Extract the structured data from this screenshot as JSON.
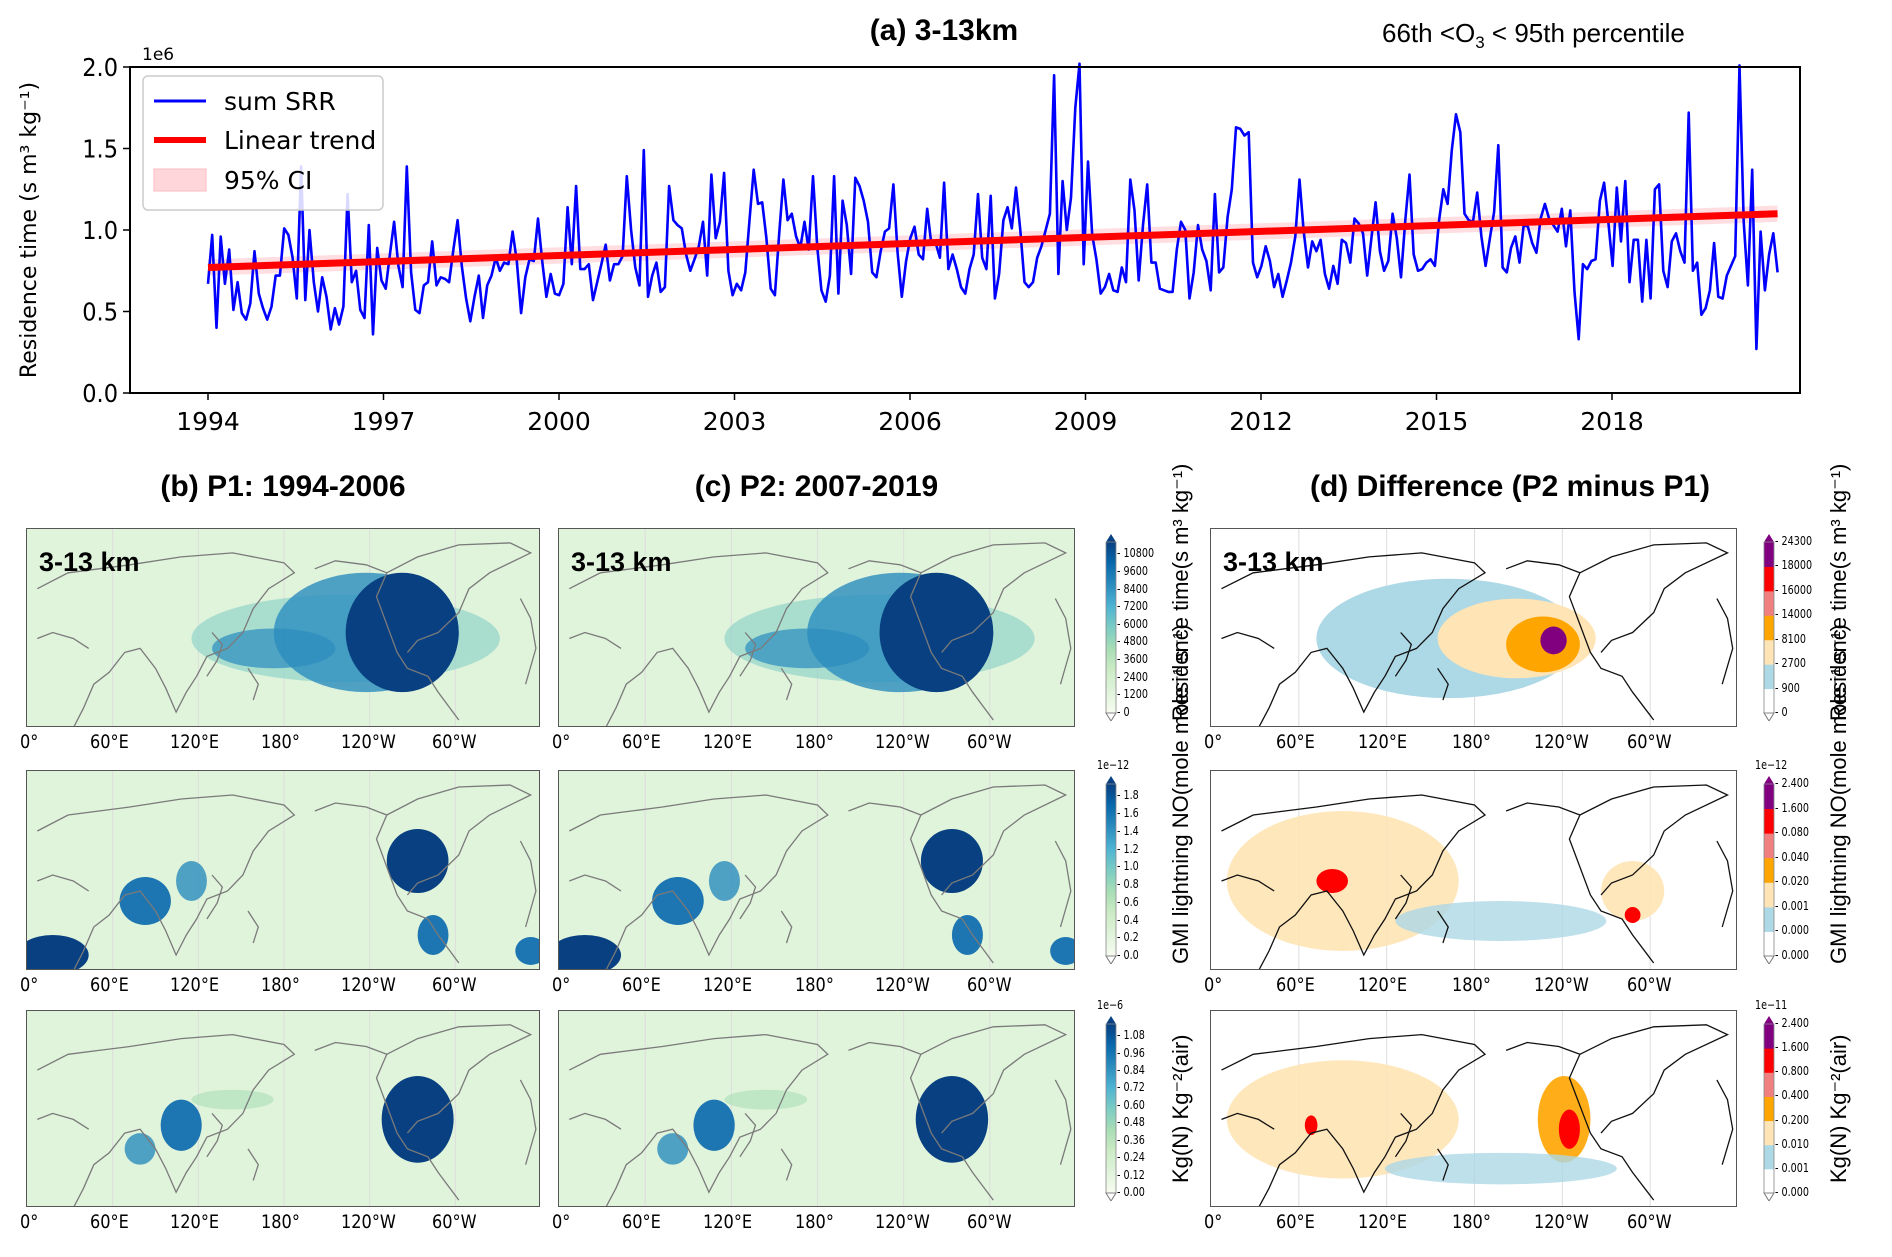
{
  "figure": {
    "panel_a_title": "(a) 3-13km",
    "percentile_note_prefix": "66th  <O",
    "percentile_note_sub": "3",
    "percentile_note_suffix": " < 95th percentile",
    "panel_b_title": "(b) P1: 1994-2006",
    "panel_c_title": "(c) P2: 2007-2019",
    "panel_d_title": "(d) Difference (P2 minus P1)",
    "map_altitude_label": "3-13 km",
    "lon_ticks": [
      "0°",
      "60°E",
      "120°E",
      "180°",
      "120°W",
      "60°W"
    ]
  },
  "colors": {
    "series": "#0000ff",
    "trend": "#ff0000",
    "ci_fill": "#ffd6d9",
    "diff_levels": [
      "#ffffff",
      "#add8e6",
      "#ffe4b5",
      "#ffa500",
      "#f08080",
      "#ff0000",
      "#800080"
    ],
    "seq_cmap": [
      "#f7fcf0",
      "#e0f3db",
      "#ccebc5",
      "#a8ddb5",
      "#7bccc4",
      "#4eb3d3",
      "#2b8cbe",
      "#0868ac",
      "#084081"
    ]
  },
  "colorbars": {
    "row1_seq": {
      "title_line1": "Residence time",
      "title_line2": "(s m³ kg⁻¹)",
      "exponent": "",
      "ticks": [
        "0",
        "1200",
        "2400",
        "3600",
        "4800",
        "6000",
        "7200",
        "8400",
        "9600",
        "10800"
      ]
    },
    "row2_seq": {
      "title_line1": "GMI lightning NO",
      "title_line2": "(mole mole⁻¹ s⁻¹)",
      "exponent": "1e−12",
      "ticks": [
        "0.0",
        "0.2",
        "0.4",
        "0.6",
        "0.8",
        "1.0",
        "1.2",
        "1.4",
        "1.6",
        "1.8"
      ]
    },
    "row3_seq": {
      "title_line1": "Kg(N) Kg⁻²(air)",
      "title_line2": "",
      "exponent": "1e−6",
      "ticks": [
        "0.00",
        "0.12",
        "0.24",
        "0.36",
        "0.48",
        "0.60",
        "0.72",
        "0.84",
        "0.96",
        "1.08"
      ]
    },
    "row1_diff": {
      "title_line1": "Residence time",
      "title_line2": "(s m³ kg⁻¹)",
      "exponent": "",
      "ticks": [
        "0",
        "900",
        "2700",
        "8100",
        "14000",
        "16000",
        "18000",
        "24300"
      ]
    },
    "row2_diff": {
      "title_line1": "GMI lightning NO",
      "title_line2": "(mole mole⁻¹ s⁻¹)",
      "exponent": "1e−12",
      "ticks": [
        "0.000",
        "0.000",
        "0.001",
        "0.020",
        "0.040",
        "0.080",
        "1.600",
        "2.400"
      ]
    },
    "row3_diff": {
      "title_line1": "Kg(N) Kg⁻²(air)",
      "title_line2": "",
      "exponent": "1e−11",
      "ticks": [
        "0.000",
        "0.001",
        "0.010",
        "0.200",
        "0.400",
        "0.800",
        "1.600",
        "2.400"
      ]
    }
  },
  "chart_data": {
    "type": "line",
    "title": "(a) 3-13km",
    "subtitle": "66th <O3 < 95th percentile",
    "xlabel": "",
    "ylabel": "Residence time (s m³ kg⁻¹)",
    "y_scale_label": "1e6",
    "ylim": [
      0.0,
      2.0
    ],
    "yticks": [
      "0.0",
      "0.5",
      "1.0",
      "1.5",
      "2.0"
    ],
    "xlim": [
      1992.95,
      2021.95
    ],
    "xticks": [
      "1994",
      "1997",
      "2000",
      "2003",
      "2006",
      "2009",
      "2012",
      "2015",
      "2018"
    ],
    "grid": false,
    "legend": {
      "position": "top-left",
      "entries": [
        "sum SRR",
        "Linear trend",
        "95% CI"
      ]
    },
    "trend": {
      "start": [
        1994.0,
        0.77
      ],
      "end": [
        2020.83,
        1.1
      ],
      "ci_halfwidth": 0.05
    },
    "series": [
      {
        "name": "sum SRR",
        "start_year": 1994.0,
        "step_years": 0.0833,
        "values": [
          0.67,
          0.97,
          0.4,
          0.96,
          0.67,
          0.88,
          0.51,
          0.68,
          0.49,
          0.45,
          0.55,
          0.87,
          0.61,
          0.52,
          0.45,
          0.53,
          0.72,
          0.72,
          1.01,
          0.97,
          0.83,
          0.58,
          1.39,
          0.57,
          1.0,
          0.68,
          0.5,
          0.71,
          0.59,
          0.39,
          0.52,
          0.42,
          0.53,
          1.22,
          0.68,
          0.75,
          0.51,
          0.46,
          1.03,
          0.36,
          0.89,
          0.69,
          0.64,
          0.85,
          1.05,
          0.78,
          0.65,
          1.39,
          0.74,
          0.51,
          0.49,
          0.66,
          0.68,
          0.93,
          0.66,
          0.71,
          0.7,
          0.68,
          0.88,
          1.06,
          0.78,
          0.58,
          0.44,
          0.59,
          0.72,
          0.46,
          0.66,
          0.72,
          0.83,
          0.75,
          0.8,
          0.79,
          0.99,
          0.81,
          0.49,
          0.71,
          0.82,
          0.81,
          1.07,
          0.81,
          0.59,
          0.73,
          0.61,
          0.6,
          0.67,
          1.14,
          0.79,
          1.27,
          0.76,
          0.76,
          0.79,
          0.57,
          0.68,
          0.79,
          0.91,
          0.69,
          0.79,
          0.79,
          0.84,
          1.33,
          1.0,
          0.77,
          0.66,
          1.49,
          0.59,
          0.72,
          0.8,
          0.62,
          0.65,
          1.27,
          1.06,
          1.03,
          1.01,
          0.85,
          0.75,
          0.82,
          0.9,
          1.05,
          0.72,
          1.34,
          0.95,
          1.05,
          1.35,
          0.75,
          0.6,
          0.67,
          0.63,
          0.74,
          1.06,
          1.37,
          1.16,
          1.17,
          0.95,
          0.64,
          0.6,
          0.97,
          1.31,
          1.06,
          1.1,
          0.96,
          0.89,
          1.05,
          0.88,
          1.33,
          0.9,
          0.63,
          0.56,
          0.72,
          1.33,
          0.61,
          1.18,
          1.03,
          0.73,
          1.32,
          1.27,
          1.18,
          1.05,
          0.74,
          0.71,
          0.87,
          0.99,
          1.01,
          1.28,
          0.86,
          0.59,
          0.81,
          0.95,
          1.02,
          0.85,
          0.82,
          1.13,
          0.91,
          0.92,
          0.83,
          1.29,
          0.76,
          0.85,
          0.76,
          0.65,
          0.61,
          0.76,
          0.85,
          1.22,
          0.83,
          0.76,
          1.21,
          0.58,
          0.73,
          1.06,
          1.14,
          1.01,
          1.26,
          1.0,
          0.68,
          0.65,
          0.68,
          0.83,
          0.9,
          1.0,
          1.1,
          1.95,
          0.73,
          1.3,
          1.0,
          1.2,
          1.75,
          2.02,
          0.79,
          1.42,
          0.97,
          0.82,
          0.61,
          0.65,
          0.73,
          0.63,
          0.62,
          0.77,
          0.68,
          1.31,
          1.12,
          0.69,
          1.03,
          1.28,
          0.8,
          0.8,
          0.64,
          0.63,
          0.62,
          0.62,
          0.88,
          1.05,
          1.0,
          0.58,
          0.74,
          1.03,
          0.88,
          0.81,
          0.63,
          1.22,
          0.74,
          0.77,
          1.08,
          1.25,
          1.63,
          1.62,
          1.58,
          1.6,
          0.8,
          0.71,
          0.78,
          0.9,
          0.81,
          0.65,
          0.73,
          0.59,
          0.69,
          0.8,
          0.96,
          1.31,
          0.99,
          0.77,
          0.93,
          0.87,
          0.94,
          0.73,
          0.64,
          0.78,
          0.67,
          0.94,
          0.92,
          0.8,
          1.07,
          1.04,
          0.98,
          0.72,
          0.95,
          1.17,
          0.87,
          0.75,
          0.81,
          1.1,
          0.95,
          0.71,
          1.06,
          1.34,
          0.85,
          0.75,
          0.76,
          0.8,
          0.82,
          0.78,
          1.06,
          1.25,
          1.16,
          1.49,
          1.71,
          1.6,
          1.1,
          1.06,
          1.05,
          1.23,
          0.96,
          0.78,
          0.95,
          1.11,
          1.52,
          0.77,
          0.74,
          0.89,
          0.96,
          0.8,
          1.03,
          1.02,
          0.92,
          0.86,
          1.07,
          1.16,
          1.07,
          1.03,
          0.99,
          1.13,
          0.9,
          1.12,
          0.62,
          0.33,
          0.79,
          0.76,
          0.81,
          0.82,
          1.18,
          1.29,
          1.05,
          0.78,
          1.26,
          0.93,
          1.3,
          0.68,
          0.94,
          0.94,
          0.56,
          0.94,
          0.58,
          1.25,
          1.28,
          0.75,
          0.65,
          0.93,
          0.98,
          0.87,
          0.8,
          1.72,
          0.75,
          0.8,
          0.48,
          0.52,
          0.63,
          0.92,
          0.59,
          0.58,
          0.72,
          0.78,
          0.84,
          2.01,
          1.05,
          0.66,
          1.37,
          0.27,
          0.99,
          0.63,
          0.85,
          0.98,
          0.74
        ]
      }
    ]
  }
}
